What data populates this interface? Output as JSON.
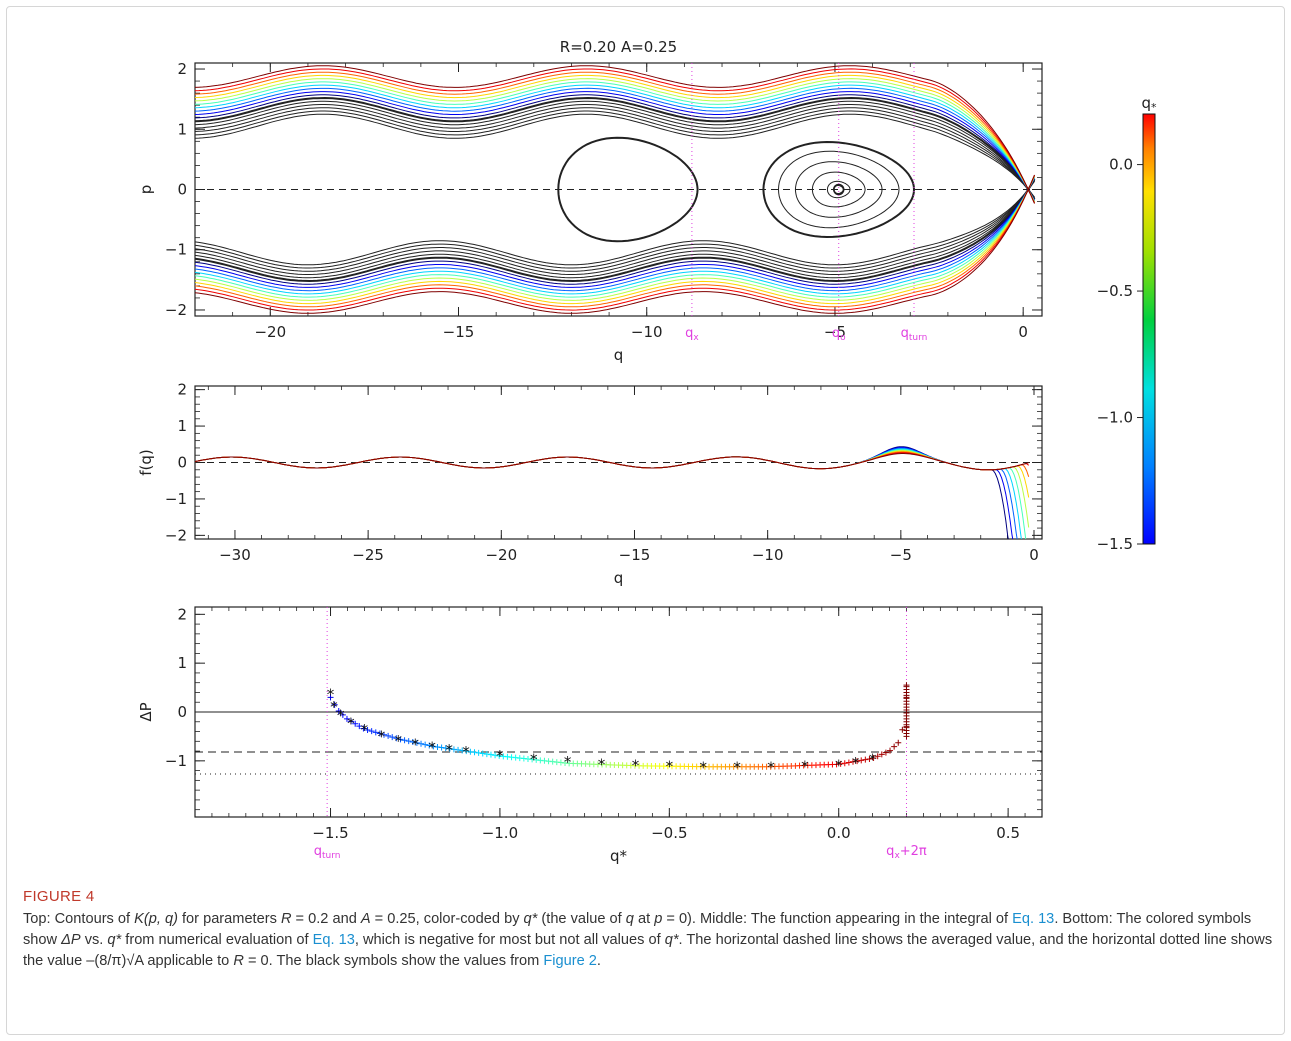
{
  "figure": {
    "label": "FIGURE 4",
    "caption": {
      "p1": "Top: Contours of ",
      "p2": "K(p, q)",
      "p3": " for parameters ",
      "p4": "R",
      "p5": " = 0.2 and ",
      "p6": "A",
      "p7": " = 0.25, color-coded by ",
      "p8": "q*",
      "p9": " (the value of ",
      "p10": "q",
      "p11": " at ",
      "p12": "p",
      "p13": " = 0). Middle: The function appearing in the integral of ",
      "link1": "Eq. 13",
      "p14": ". Bottom: The colored symbols show ",
      "p15": "ΔP",
      "p16": " vs. ",
      "p17": "q*",
      "p18": " from numerical evaluation of ",
      "link2": "Eq. 13",
      "p19": ", which is negative for most but not all values of ",
      "p20": "q*",
      "p21": ". The horizontal dashed line shows the averaged value, and the horizontal dotted line shows the value –(8/π)√A applicable to ",
      "p22": "R",
      "p23": " = 0. The black symbols show the values from ",
      "link3": "Figure 2",
      "p24": "."
    }
  },
  "chart_data": [
    {
      "type": "line",
      "panel": "top",
      "title": "R=0.20   A=0.25",
      "xlabel": "q",
      "ylabel": "p",
      "xlim": [
        -22,
        0.5
      ],
      "ylim": [
        -2.1,
        2.1
      ],
      "xticks": [
        "-20",
        "-15",
        "-10",
        "-5",
        "0"
      ],
      "yticks": [
        "-2",
        "-1",
        "0",
        "1",
        "2"
      ],
      "vlines": [
        {
          "x": -8.8,
          "label": "qx"
        },
        {
          "x": -4.9,
          "label": "qo"
        },
        {
          "x": -2.9,
          "label": "qturn"
        }
      ],
      "dashed_hline": 0,
      "contours": "closed and open contours of K(p,q); black inside separatrix, colored by q* outside",
      "colorbar": {
        "label": "q*",
        "range": [
          -1.5,
          0.2
        ],
        "ticks": [
          "0.0",
          "-0.5",
          "-1.0",
          "-1.5"
        ]
      }
    },
    {
      "type": "line",
      "panel": "middle",
      "xlabel": "q",
      "ylabel": "f(q)",
      "xlim": [
        -31.5,
        0.3
      ],
      "ylim": [
        -2.1,
        2.1
      ],
      "xticks": [
        "-30",
        "-25",
        "-20",
        "-15",
        "-10",
        "-5",
        "0"
      ],
      "yticks": [
        "-2",
        "-1",
        "0",
        "1",
        "2"
      ],
      "dashed_hline": 0
    },
    {
      "type": "scatter",
      "panel": "bottom",
      "xlabel": "q*",
      "ylabel": "ΔP",
      "xlim": [
        -1.9,
        0.6
      ],
      "ylim": [
        -2.15,
        2.15
      ],
      "xticks": [
        "-1.5",
        "-1.0",
        "-0.5",
        "0.0",
        "0.5"
      ],
      "yticks": [
        "-1",
        "0",
        "1",
        "2"
      ],
      "vlines": [
        {
          "x": -1.51,
          "label": "qturn"
        },
        {
          "x": 0.2,
          "label": "qx+2π"
        }
      ],
      "solid_hline": 0,
      "dashed_hline": -0.82,
      "dotted_hline": -1.27,
      "series": [
        {
          "name": "colored symbols (+)",
          "x": [
            -1.5,
            -1.48,
            -1.45,
            -1.4,
            -1.3,
            -1.2,
            -1.0,
            -0.8,
            -0.6,
            -0.4,
            -0.2,
            0.0,
            0.1,
            0.15,
            0.18,
            0.19,
            0.2,
            0.2,
            0.2
          ],
          "y": [
            0.3,
            0.05,
            -0.15,
            -0.35,
            -0.55,
            -0.7,
            -0.9,
            -1.05,
            -1.1,
            -1.12,
            -1.12,
            -1.07,
            -0.95,
            -0.8,
            -0.6,
            -0.3,
            0.0,
            0.3,
            0.55
          ]
        },
        {
          "name": "black symbols (*)",
          "x": [
            -1.5,
            -1.49,
            -1.47,
            -1.44,
            -1.4,
            -1.35,
            -1.3,
            -1.25,
            -1.2,
            -1.15,
            -1.1,
            -1.0,
            -0.9,
            -0.8,
            -0.7,
            -0.6,
            -0.5,
            -0.4,
            -0.3,
            -0.2,
            -0.1,
            0.0,
            0.05,
            0.1
          ],
          "y": [
            0.38,
            0.12,
            -0.05,
            -0.22,
            -0.35,
            -0.48,
            -0.57,
            -0.64,
            -0.71,
            -0.76,
            -0.8,
            -0.88,
            -0.95,
            -1.0,
            -1.05,
            -1.08,
            -1.1,
            -1.12,
            -1.12,
            -1.12,
            -1.1,
            -1.07,
            -1.02,
            -0.95
          ]
        }
      ]
    }
  ]
}
